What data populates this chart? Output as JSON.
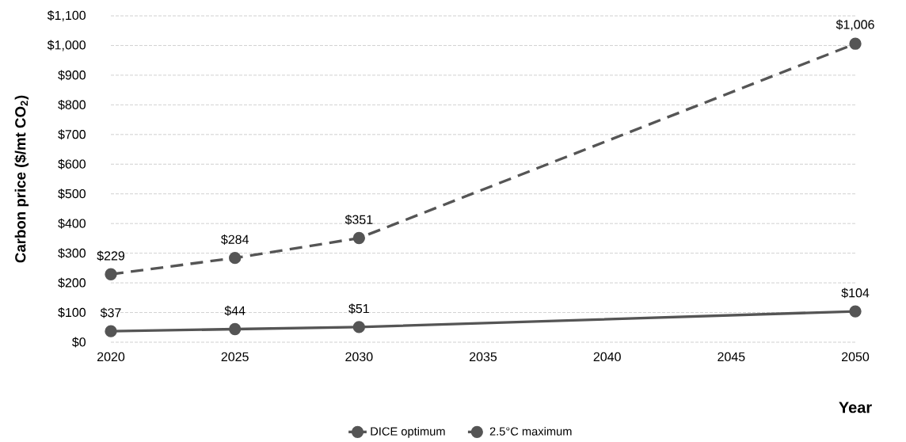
{
  "chart_data": {
    "type": "line",
    "xlabel": "Year",
    "ylabel": "Carbon price ($/mt CO$_{2}$)",
    "x": [
      2020,
      2025,
      2030,
      2050
    ],
    "xlim": [
      2020,
      2050
    ],
    "xticks": [
      2020,
      2025,
      2030,
      2035,
      2040,
      2045,
      2050
    ],
    "ylim": [
      0,
      1100
    ],
    "yticks": [
      {
        "value": 0,
        "label": "$0"
      },
      {
        "value": 100,
        "label": "$100"
      },
      {
        "value": 200,
        "label": "$200"
      },
      {
        "value": 300,
        "label": "$300"
      },
      {
        "value": 400,
        "label": "$400"
      },
      {
        "value": 500,
        "label": "$500"
      },
      {
        "value": 600,
        "label": "$600"
      },
      {
        "value": 700,
        "label": "$700"
      },
      {
        "value": 800,
        "label": "$800"
      },
      {
        "value": 900,
        "label": "$900"
      },
      {
        "value": 1000,
        "label": "$1,000"
      },
      {
        "value": 1100,
        "label": "$1,100"
      }
    ],
    "series": [
      {
        "name": "DICE optimum",
        "color": "#555555",
        "line_style": "solid",
        "values": [
          37,
          44,
          51,
          104
        ],
        "value_labels": [
          "$37",
          "$44",
          "$51",
          "$104"
        ]
      },
      {
        "name": "2.5°C maximum",
        "color": "#555555",
        "line_style": "dashed",
        "values": [
          229,
          284,
          351,
          1006
        ],
        "value_labels": [
          "$229",
          "$284",
          "$351",
          "$1,006"
        ]
      }
    ],
    "marker": "circle",
    "grid": "y",
    "legend": "bottom"
  }
}
